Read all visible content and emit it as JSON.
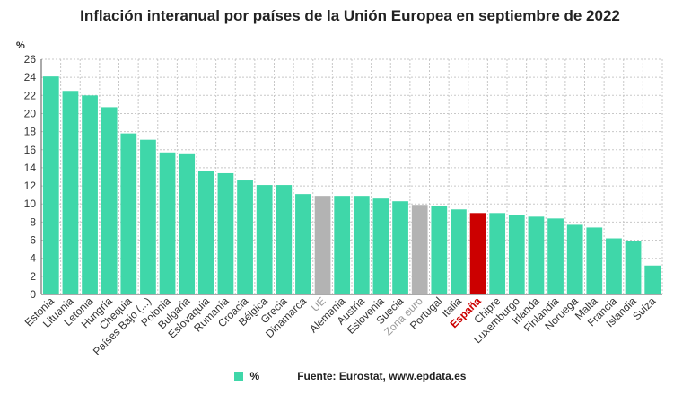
{
  "chart_data": {
    "type": "bar",
    "title": "Inflación interanual por países de la Unión Europea en septiembre de 2022",
    "ylabel": "%",
    "xlabel": "",
    "ylim": [
      0,
      26
    ],
    "yticks": [
      0,
      2,
      4,
      6,
      8,
      10,
      12,
      14,
      16,
      18,
      20,
      22,
      24,
      26
    ],
    "grid": true,
    "categories": [
      "Estonia",
      "Lituania",
      "Letonia",
      "Hungría",
      "Chequia",
      "Países Bajo (...)",
      "Polonia",
      "Bulgaria",
      "Eslovaquia",
      "Rumanía",
      "Croacia",
      "Bélgica",
      "Grecia",
      "Dinamarca",
      "UE",
      "Alemania",
      "Austria",
      "Eslovenia",
      "Suecia",
      "Zona euro",
      "Portugal",
      "Italia",
      "España",
      "Chipre",
      "Luxemburgo",
      "Irlanda",
      "Finlandia",
      "Noruega",
      "Malta",
      "Francia",
      "Islandia",
      "Suiza"
    ],
    "series": [
      {
        "name": "%",
        "values": [
          24.1,
          22.5,
          22.0,
          20.7,
          17.8,
          17.1,
          15.7,
          15.6,
          13.6,
          13.4,
          12.6,
          12.1,
          12.1,
          11.1,
          10.9,
          10.9,
          10.9,
          10.6,
          10.3,
          9.9,
          9.8,
          9.4,
          9.0,
          9.0,
          8.8,
          8.6,
          8.4,
          7.7,
          7.4,
          6.2,
          5.9,
          3.2
        ]
      }
    ],
    "bar_colors": [
      "#3fd7a9",
      "#3fd7a9",
      "#3fd7a9",
      "#3fd7a9",
      "#3fd7a9",
      "#3fd7a9",
      "#3fd7a9",
      "#3fd7a9",
      "#3fd7a9",
      "#3fd7a9",
      "#3fd7a9",
      "#3fd7a9",
      "#3fd7a9",
      "#3fd7a9",
      "#b3b3b3",
      "#3fd7a9",
      "#3fd7a9",
      "#3fd7a9",
      "#3fd7a9",
      "#b3b3b3",
      "#3fd7a9",
      "#3fd7a9",
      "#cc0000",
      "#3fd7a9",
      "#3fd7a9",
      "#3fd7a9",
      "#3fd7a9",
      "#3fd7a9",
      "#3fd7a9",
      "#3fd7a9",
      "#3fd7a9",
      "#3fd7a9"
    ],
    "label_colors": [
      "#333333",
      "#333333",
      "#333333",
      "#333333",
      "#333333",
      "#333333",
      "#333333",
      "#333333",
      "#333333",
      "#333333",
      "#333333",
      "#333333",
      "#333333",
      "#333333",
      "#9a9a9a",
      "#333333",
      "#333333",
      "#333333",
      "#333333",
      "#9a9a9a",
      "#333333",
      "#333333",
      "#cc0000",
      "#333333",
      "#333333",
      "#333333",
      "#333333",
      "#333333",
      "#333333",
      "#333333",
      "#333333",
      "#333333"
    ],
    "legend": {
      "label": "%",
      "color": "#3fd7a9",
      "position": "bottom"
    },
    "source": "Fuente: Eurostat, www.epdata.es"
  }
}
